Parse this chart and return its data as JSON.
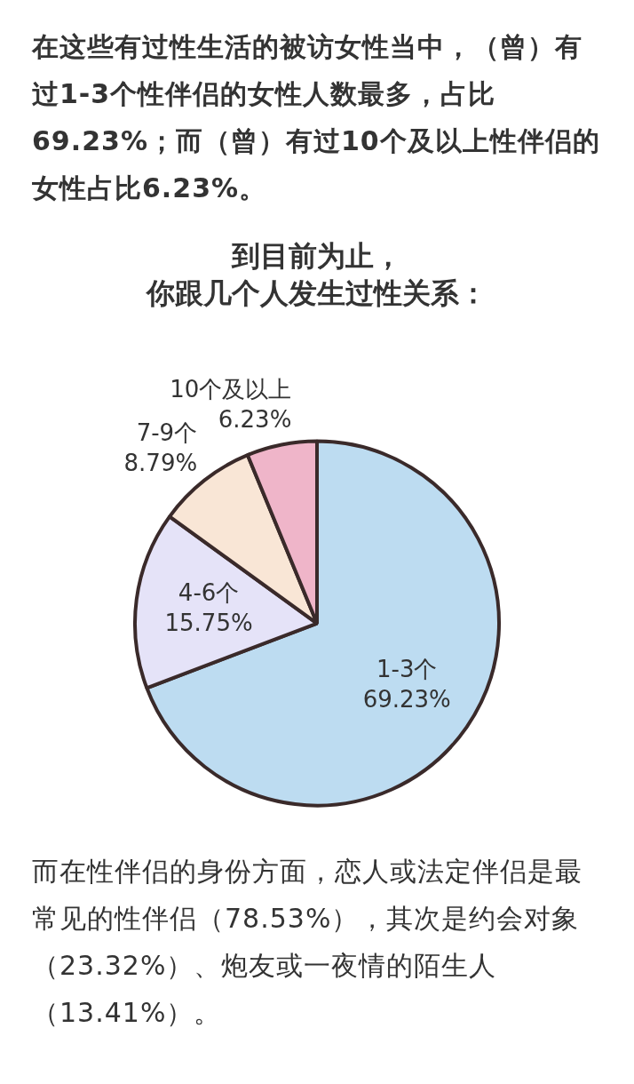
{
  "chart_data": {
    "type": "pie",
    "title": "到目前为止，你跟几个人发生过性关系：",
    "value_labels": [
      "69.23%",
      "15.75%",
      "8.79%",
      "6.23%"
    ],
    "categories": [
      "1-3个",
      "4-6个",
      "7-9个",
      "10个及以上"
    ],
    "values": [
      69.23,
      15.75,
      8.79,
      6.23
    ],
    "colors": [
      "#bddcf1",
      "#e5e3f8",
      "#f9e6d6",
      "#efb5c9"
    ],
    "legend": false,
    "annotations": [
      "在这些有过性生活的被访女性当中，（曾）有过1-3个性伴侣的女性人数最多，占比69.23%；而（曾）有过10个及以上性伴侣的女性占比6.23%。",
      "而在性伴侣的身份方面，恋人或法定伴侣是最常见的性伴侣（78.53%），其次是约会对象（23.32%）、炮友或一夜情的陌生人（13.41%）。"
    ]
  }
}
